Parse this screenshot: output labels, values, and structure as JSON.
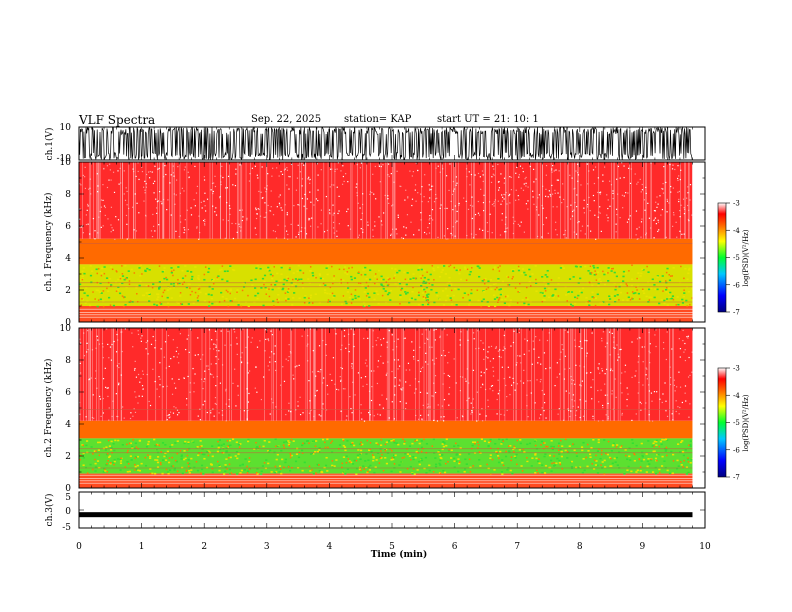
{
  "header": {
    "title": "VLF Spectra",
    "date": "Sep. 22, 2025",
    "station": "station= KAP",
    "start": "start UT =  21: 10: 1"
  },
  "chart_data": [
    {
      "type": "line",
      "name": "ch1-waveform",
      "ylabel": "ch.1(V)",
      "ylim": [
        -10,
        10
      ],
      "y_ticks": [
        "10",
        "-10"
      ],
      "xlim": [
        0,
        10
      ],
      "data_end_min": 9.8,
      "amplitude": "saturated noise between about -10 and 10"
    },
    {
      "type": "heatmap",
      "name": "ch1-spectrogram",
      "ylabel": "ch.1 Frequency (kHz)",
      "ylim": [
        0,
        10
      ],
      "y_ticks": [
        "0",
        "2",
        "4",
        "6",
        "8",
        "10"
      ],
      "xlim": [
        0,
        10
      ],
      "data_end_min": 9.8,
      "bands": [
        {
          "from": 5.2,
          "to": 10,
          "level": "high",
          "color": "#ff2a2a"
        },
        {
          "from": 3.6,
          "to": 5.2,
          "level": "mid",
          "color": "#ff6a00"
        },
        {
          "from": 1.0,
          "to": 3.6,
          "level": "low",
          "color": "#d8e000"
        },
        {
          "from": 0,
          "to": 1.0,
          "level": "mid",
          "color": "#ff4a20"
        }
      ],
      "colorbar": {
        "label": "log(PSD)(V²/Hz)",
        "ticks": [
          "-3",
          "-4",
          "-5",
          "-6",
          "-7"
        ],
        "range": [
          -7,
          -3
        ]
      }
    },
    {
      "type": "heatmap",
      "name": "ch2-spectrogram",
      "ylabel": "ch.2 Frequency (kHz)",
      "ylim": [
        0,
        10
      ],
      "y_ticks": [
        "0",
        "2",
        "4",
        "6",
        "8",
        "10"
      ],
      "xlim": [
        0,
        10
      ],
      "data_end_min": 9.8,
      "bands": [
        {
          "from": 4.2,
          "to": 10,
          "level": "high",
          "color": "#ff2a2a"
        },
        {
          "from": 3.1,
          "to": 4.2,
          "level": "mid",
          "color": "#ff6a00"
        },
        {
          "from": 0.9,
          "to": 3.1,
          "level": "low",
          "color": "#5ce030"
        },
        {
          "from": 0,
          "to": 0.9,
          "level": "mid",
          "color": "#ff4a20"
        }
      ],
      "colorbar": {
        "label": "log(PSD)(V²/Hz)",
        "ticks": [
          "-3",
          "-4",
          "-5",
          "-6",
          "-7"
        ],
        "range": [
          -7,
          -3
        ]
      }
    },
    {
      "type": "line",
      "name": "ch3-waveform",
      "ylabel": "ch.3(V)",
      "ylim": [
        -5,
        5
      ],
      "y_ticks": [
        "5",
        "0",
        "-5"
      ],
      "xlim": [
        0,
        10
      ],
      "data_end_min": 9.8,
      "level": -1.3,
      "amplitude": "narrow trace around -1.3"
    }
  ],
  "x_axis": {
    "label": "Time (min)",
    "ticks": [
      "0",
      "1",
      "2",
      "3",
      "4",
      "5",
      "6",
      "7",
      "8",
      "9",
      "10"
    ]
  },
  "colors": {
    "trace": "#000000",
    "high": "#ff2a2a",
    "mid": "#ff7a00",
    "yellow": "#e8e400",
    "green": "#33dd33",
    "white": "#ffffff"
  }
}
